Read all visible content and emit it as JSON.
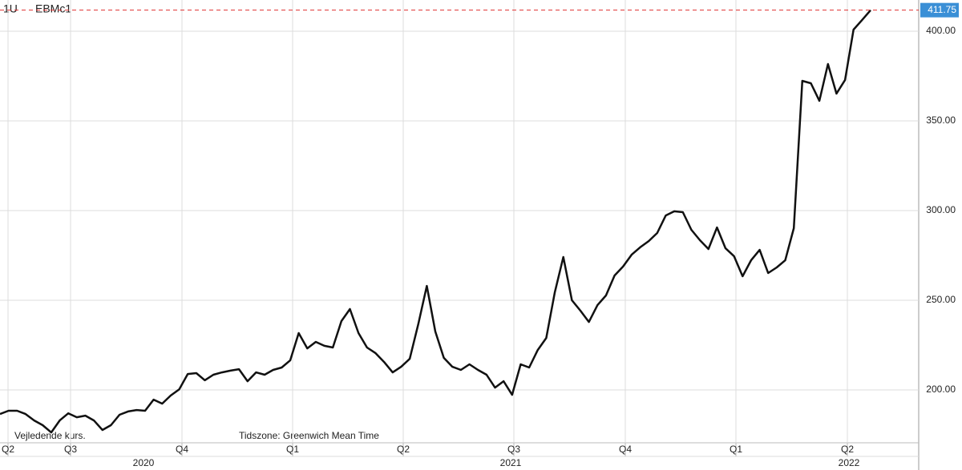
{
  "chart_data": {
    "type": "line",
    "symbol": "1U",
    "instrument": "EBMc1",
    "note": "Vejledende kurs.",
    "timezone": "Tidszone: Greenwich Mean Time",
    "quarters": [
      "Q2",
      "Q3",
      "Q4",
      "Q1",
      "Q2",
      "Q3",
      "Q4",
      "Q1",
      "Q2"
    ],
    "years": [
      "2020",
      "2021",
      "2022"
    ],
    "series": [
      {
        "name": "EBMc1",
        "color": "#111111",
        "values": [
          186.6,
          188.4,
          188.4,
          186.6,
          183,
          180.4,
          176.3,
          183,
          187,
          184.8,
          185.7,
          183,
          177.7,
          180.4,
          186.2,
          188,
          188.8,
          188.4,
          194.6,
          192.4,
          196.9,
          200.4,
          208.9,
          209.4,
          205.4,
          208.5,
          209.8,
          210.8,
          211.6,
          204.9,
          209.8,
          208.5,
          211.2,
          212.5,
          216.5,
          231.7,
          223.2,
          226.8,
          224.6,
          223.7,
          238.4,
          245.1,
          231.7,
          223.7,
          220.5,
          215.6,
          209.8,
          212.9,
          217.4,
          236.6,
          258,
          232.6,
          217.9,
          212.9,
          211.2,
          214.3,
          211.2,
          208.5,
          201.3,
          204.9,
          197.3,
          214.3,
          212.5,
          222.3,
          229,
          254.5,
          274.1,
          250,
          244.2,
          237.9,
          247.3,
          252.7,
          263.8,
          268.8,
          275.4,
          279.5,
          283,
          287.5,
          297.3,
          299.6,
          299.1,
          289.3,
          283.5,
          278.6,
          290.6,
          279,
          274.6,
          263.4,
          272.3,
          278.1,
          265.2,
          268.3,
          272.3,
          290.2,
          372.3,
          371,
          361.2,
          381.7,
          365.2,
          372.8,
          400.9,
          406.3,
          411.75
        ]
      }
    ],
    "last_value": 411.75,
    "reference_color": "#e03030",
    "last_label_color": "#3a8fd6",
    "ylim": [
      171.9,
      417.4
    ],
    "yticks": [
      {
        "value": 200,
        "label": "200.00"
      },
      {
        "value": 250,
        "label": "250.00"
      },
      {
        "value": 300,
        "label": "300.00"
      },
      {
        "value": 350,
        "label": "350.00"
      },
      {
        "value": 400,
        "label": "400.00"
      }
    ],
    "grid": true
  }
}
